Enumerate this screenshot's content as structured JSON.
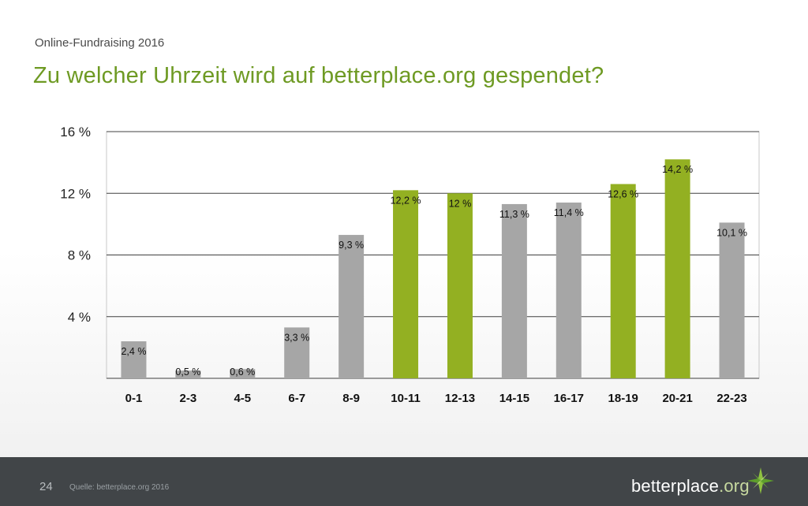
{
  "header": {
    "subtitle": "Online-Fundraising 2016",
    "title": "Zu welcher Uhrzeit wird auf betterplace.org gespendet?"
  },
  "chart_data": {
    "type": "bar",
    "title": "Zu welcher Uhrzeit wird auf betterplace.org gespendet?",
    "xlabel": "",
    "ylabel": "",
    "ylim": [
      0,
      16
    ],
    "yticks": [
      4,
      8,
      12,
      16
    ],
    "ytick_labels": [
      "4 %",
      "8 %",
      "12 %",
      "16 %"
    ],
    "categories": [
      "0-1",
      "2-3",
      "4-5",
      "6-7",
      "8-9",
      "10-11",
      "12-13",
      "14-15",
      "16-17",
      "18-19",
      "20-21",
      "22-23"
    ],
    "values": [
      2.4,
      0.5,
      0.6,
      3.3,
      9.3,
      12.2,
      12,
      11.3,
      11.4,
      12.6,
      14.2,
      10.1
    ],
    "labels": [
      "2,4 %",
      "0,5 %",
      "0,6 %",
      "3,3 %",
      "9,3 %",
      "12,2 %",
      "12 %",
      "11,3 %",
      "11,4 %",
      "12,6 %",
      "14,2 %",
      "10,1 %"
    ],
    "highlighted": [
      false,
      false,
      false,
      false,
      false,
      true,
      true,
      false,
      false,
      true,
      true,
      false
    ],
    "grid": true,
    "colors": {
      "normal": "#a6a6a6",
      "highlight": "#93b022"
    }
  },
  "footer": {
    "page_number": "24",
    "source": "Quelle: betterplace.org 2016",
    "logo_main": "betterplace",
    "logo_suffix": ".org"
  },
  "colors": {
    "title": "#6e9a23",
    "footer_bg": "#414548"
  }
}
